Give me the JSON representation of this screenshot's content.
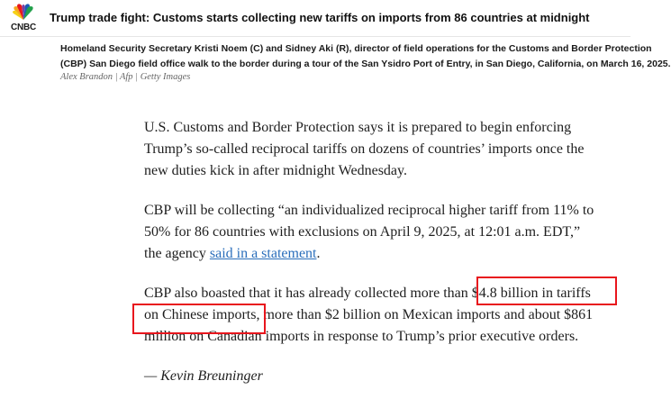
{
  "header": {
    "logo_text": "CNBC",
    "headline": "Trump trade fight: Customs starts collecting new tariffs on imports from 86 countries at midnight"
  },
  "photo_caption": {
    "line1": "Homeland Security Secretary Kristi Noem (C) and Sidney Aki (R), director of field operations for the Customs and Border Protection",
    "line2": "(CBP) San Diego field office walk to the border during a tour of the San Ysidro Port of Entry, in San Diego, California, on March 16, 2025.",
    "credit": "Alex Brandon | Afp | Getty Images"
  },
  "article": {
    "p1": [
      "U.S. Customs and Border Protection says it is prepared to begin enforcing",
      "Trump’s so-called reciprocal tariffs on dozens of countries’ imports once the",
      "new duties kick in after midnight Wednesday."
    ],
    "p2": {
      "line1": "CBP will be collecting “an individualized reciprocal higher tariff from 11% to",
      "line2": "50% for 86 countries with exclusions on April 9, 2025, at 12:01 a.m. EDT,”",
      "line3_before": "the agency ",
      "link_text": "said in a statement",
      "line3_after": "."
    },
    "p3": [
      "CBP also boasted that it has already collected more than $4.8 billion in tariffs",
      "on Chinese imports, more than $2 billion on Mexican imports and about $861",
      "million on Canadian imports in response to Trump’s prior executive orders."
    ],
    "byline": "— Kevin Breuninger"
  },
  "colors": {
    "highlight": "#e8161d",
    "link": "#2a6ebb"
  }
}
